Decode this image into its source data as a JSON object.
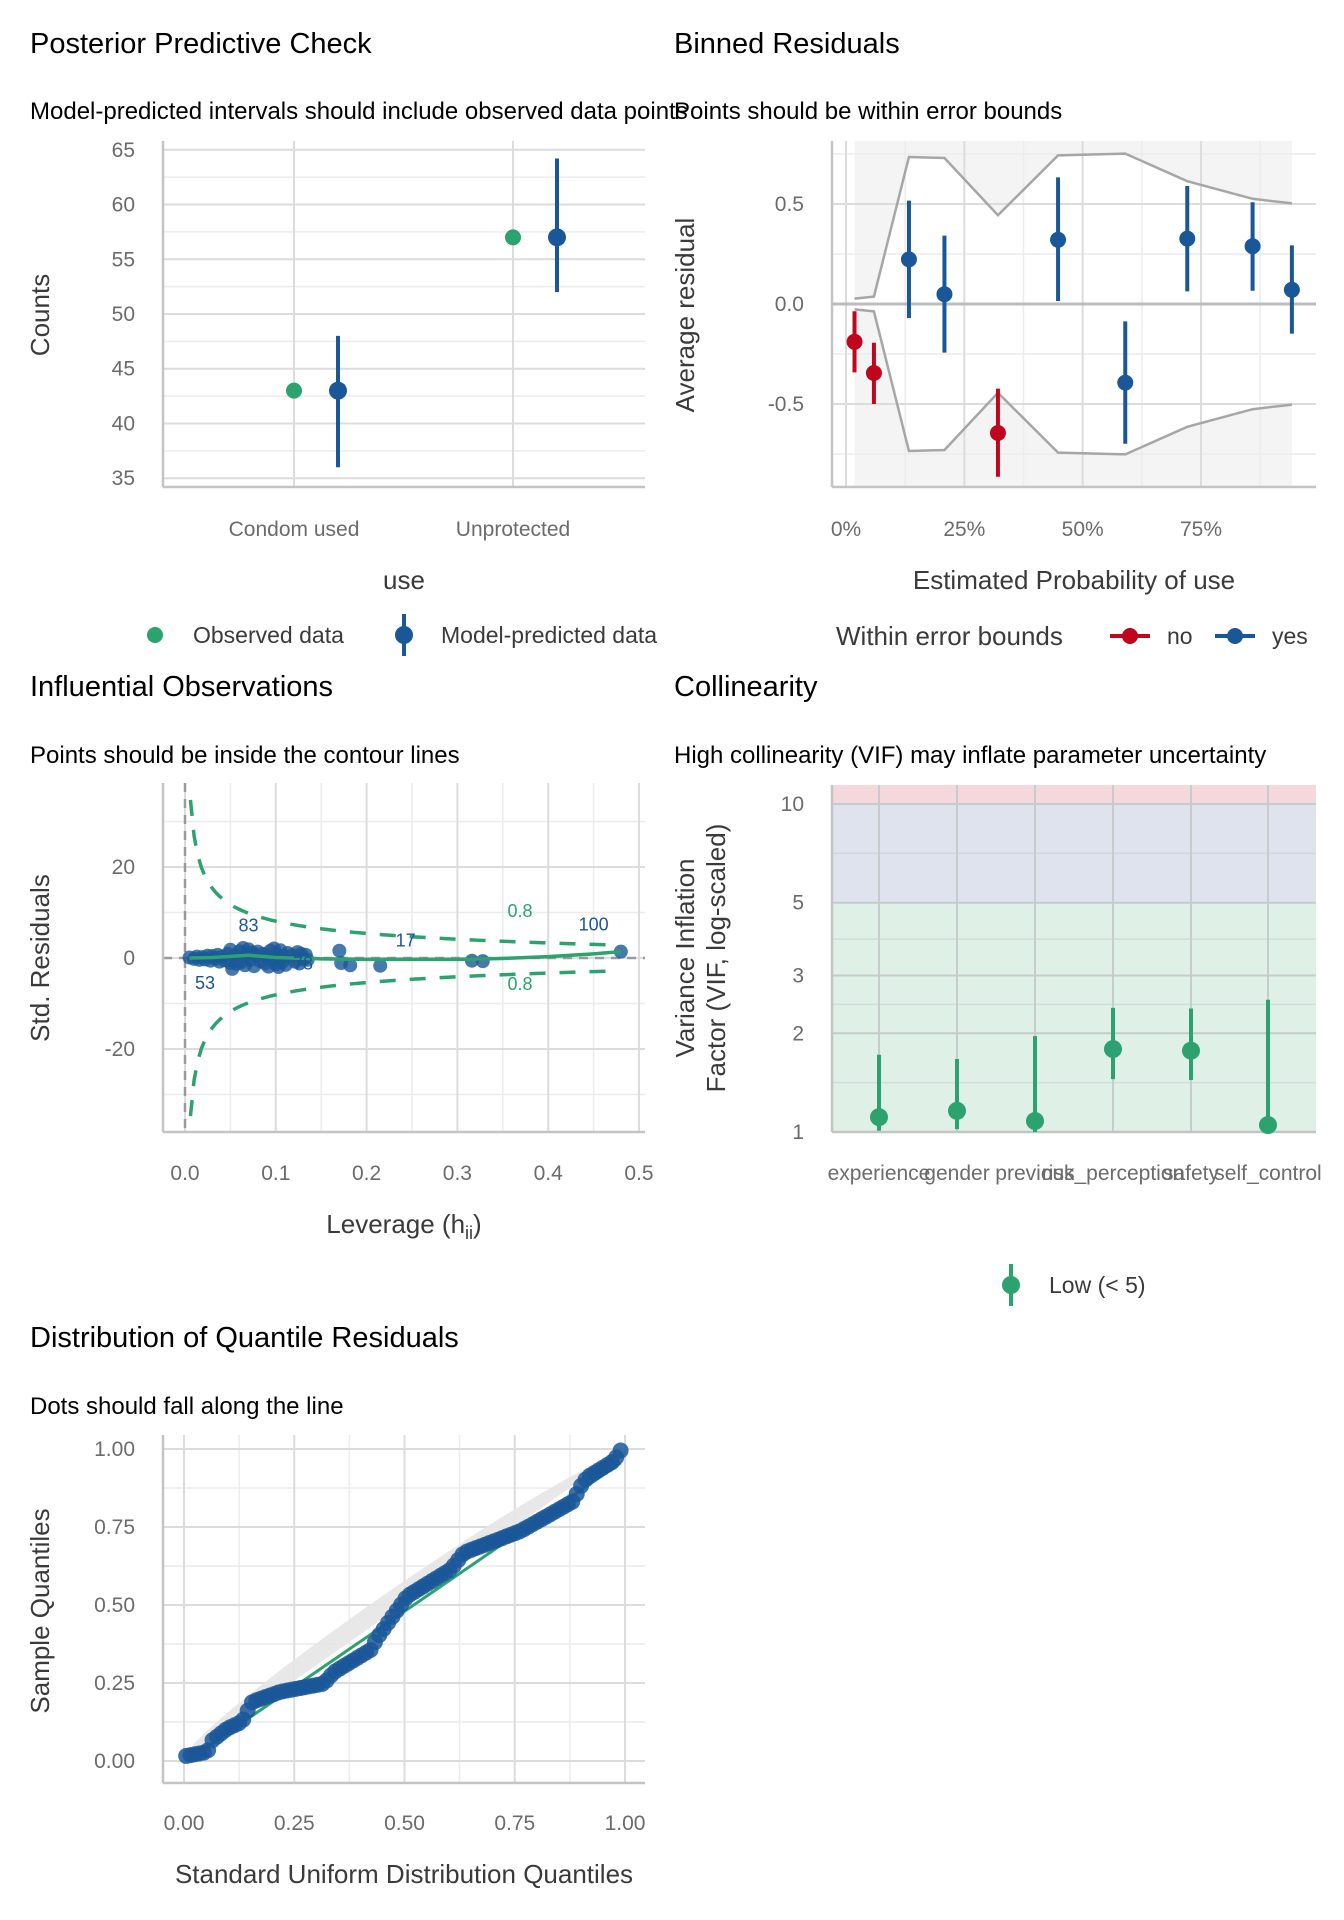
{
  "chart_data": [
    {
      "id": "ppc",
      "type": "scatter",
      "title": "Posterior Predictive Check",
      "subtitle": "Model-predicted intervals should include observed data points",
      "xlabel": "use",
      "ylabel": "Counts",
      "categories": [
        "Condom used",
        "Unprotected"
      ],
      "ylim": [
        34.2,
        65.8
      ],
      "yticks": [
        35,
        40,
        45,
        50,
        55,
        60,
        65
      ],
      "grid": true,
      "series": [
        {
          "name": "Observed data",
          "color": "#2ca26e",
          "values": [
            43,
            57
          ]
        },
        {
          "name": "Model-predicted data",
          "color": "#1a5799",
          "values": [
            43,
            57
          ],
          "lower": [
            36,
            52
          ],
          "upper": [
            48,
            64.2
          ]
        }
      ],
      "legend": {
        "position": "bottom",
        "items": [
          "Observed data",
          "Model-predicted data"
        ]
      }
    },
    {
      "id": "binned",
      "type": "scatter",
      "title": "Binned Residuals",
      "subtitle": "Points should be within error bounds",
      "xlabel": "Estimated Probability of use",
      "ylabel": "Average residual",
      "xlim": [
        -0.02,
        1.0
      ],
      "ylim": [
        -0.924,
        0.823
      ],
      "xticks": [
        "0%",
        "25%",
        "50%",
        "75%"
      ],
      "xtick_values": [
        0,
        0.25,
        0.5,
        0.75
      ],
      "yticks": [
        "-0.5",
        "0.0",
        "0.5"
      ],
      "ytick_values": [
        -0.5,
        0,
        0.5
      ],
      "grid": true,
      "points": [
        {
          "x": 0.018,
          "y": -0.189,
          "lo": -0.342,
          "hi": -0.036,
          "within": "no"
        },
        {
          "x": 0.059,
          "y": -0.345,
          "lo": -0.5,
          "hi": -0.194,
          "within": "no"
        },
        {
          "x": 0.133,
          "y": 0.223,
          "lo": -0.07,
          "hi": 0.517,
          "within": "yes"
        },
        {
          "x": 0.208,
          "y": 0.049,
          "lo": -0.243,
          "hi": 0.342,
          "within": "yes"
        },
        {
          "x": 0.321,
          "y": -0.645,
          "lo": -0.864,
          "hi": -0.423,
          "within": "no"
        },
        {
          "x": 0.448,
          "y": 0.321,
          "lo": 0.015,
          "hi": 0.633,
          "within": "yes"
        },
        {
          "x": 0.59,
          "y": -0.393,
          "lo": -0.699,
          "hi": -0.087,
          "within": "yes"
        },
        {
          "x": 0.721,
          "y": 0.327,
          "lo": 0.063,
          "hi": 0.59,
          "within": "yes"
        },
        {
          "x": 0.859,
          "y": 0.289,
          "lo": 0.066,
          "hi": 0.509,
          "within": "yes"
        },
        {
          "x": 0.942,
          "y": 0.071,
          "lo": -0.148,
          "hi": 0.293,
          "within": "yes"
        }
      ],
      "error_bounds": [
        {
          "x": 0.018,
          "bound": 0.027
        },
        {
          "x": 0.059,
          "bound": 0.037
        },
        {
          "x": 0.133,
          "bound": 0.735
        },
        {
          "x": 0.208,
          "bound": 0.73
        },
        {
          "x": 0.321,
          "bound": 0.444
        },
        {
          "x": 0.448,
          "bound": 0.743
        },
        {
          "x": 0.59,
          "bound": 0.752
        },
        {
          "x": 0.721,
          "bound": 0.614
        },
        {
          "x": 0.859,
          "bound": 0.526
        },
        {
          "x": 0.942,
          "bound": 0.503
        }
      ],
      "colors": {
        "no": "#c0061c",
        "yes": "#1a5799",
        "bound": "#a6a6a6"
      },
      "legend": {
        "position": "bottom",
        "title": "Within error bounds",
        "items": [
          "no",
          "yes"
        ]
      }
    },
    {
      "id": "influence",
      "type": "scatter",
      "title": "Influential Observations",
      "subtitle": "Points should be inside the contour lines",
      "xlabel": "Leverage (h",
      "xlabel_sub": "ii",
      "xlabel_end": ")",
      "ylabel": "Std. Residuals",
      "xlim": [
        -0.023,
        0.502
      ],
      "ylim": [
        -38.2,
        38.5
      ],
      "xticks": [
        "0.0",
        "0.1",
        "0.2",
        "0.3",
        "0.4",
        "0.5"
      ],
      "xtick_values": [
        0,
        0.1,
        0.2,
        0.3,
        0.4,
        0.5
      ],
      "yticks": [
        "-20",
        "0",
        "20"
      ],
      "ytick_values": [
        -20,
        0,
        20
      ],
      "grid": true,
      "cook_level": "0.8",
      "contour_param": 9.1,
      "points": [
        [
          0.005,
          0.1
        ],
        [
          0.01,
          -0.2
        ],
        [
          0.013,
          0.3
        ],
        [
          0.016,
          -0.4
        ],
        [
          0.019,
          0.2
        ],
        [
          0.022,
          -0.3
        ],
        [
          0.025,
          0.5
        ],
        [
          0.028,
          -0.6
        ],
        [
          0.03,
          0.4
        ],
        [
          0.033,
          -0.2
        ],
        [
          0.036,
          0.7
        ],
        [
          0.038,
          -0.8
        ],
        [
          0.041,
          0.3
        ],
        [
          0.044,
          -0.5
        ],
        [
          0.047,
          0.9
        ],
        [
          0.05,
          -1.1
        ],
        [
          0.05,
          1.8
        ],
        [
          0.052,
          -2.4
        ],
        [
          0.055,
          0.6
        ],
        [
          0.057,
          -1.3
        ],
        [
          0.06,
          1.5
        ],
        [
          0.062,
          -0.9
        ],
        [
          0.064,
          2.2
        ],
        [
          0.066,
          -1.6
        ],
        [
          0.068,
          0.8
        ],
        [
          0.07,
          1.9
        ],
        [
          0.072,
          -0.4
        ],
        [
          0.074,
          1.2
        ],
        [
          0.076,
          -1.8
        ],
        [
          0.078,
          0.5
        ],
        [
          0.08,
          1.4
        ],
        [
          0.083,
          -0.7
        ],
        [
          0.086,
          0.9
        ],
        [
          0.088,
          -1.2
        ],
        [
          0.09,
          0.3
        ],
        [
          0.092,
          -1.9
        ],
        [
          0.094,
          1.6
        ],
        [
          0.096,
          -0.5
        ],
        [
          0.098,
          2.1
        ],
        [
          0.1,
          -1.4
        ],
        [
          0.101,
          0.8
        ],
        [
          0.103,
          -2.0
        ],
        [
          0.105,
          1.7
        ],
        [
          0.107,
          -0.9
        ],
        [
          0.109,
          0.4
        ],
        [
          0.111,
          -1.5
        ],
        [
          0.113,
          1.1
        ],
        [
          0.118,
          0.6
        ],
        [
          0.121,
          -0.8
        ],
        [
          0.124,
          1.3
        ],
        [
          0.126,
          -1.2
        ],
        [
          0.128,
          0.9
        ],
        [
          0.13,
          -0.3
        ],
        [
          0.133,
          0.7
        ],
        [
          0.135,
          -0.4
        ],
        [
          0.17,
          1.6
        ],
        [
          0.172,
          -1.1
        ],
        [
          0.182,
          -1.6
        ],
        [
          0.215,
          -1.7
        ],
        [
          0.316,
          -0.6
        ],
        [
          0.328,
          -0.7
        ],
        [
          0.48,
          1.4
        ]
      ],
      "labels": [
        {
          "text": "83",
          "x": 0.07,
          "y": 5.8
        },
        {
          "text": "53",
          "x": 0.022,
          "y": -6.8
        },
        {
          "text": "78",
          "x": 0.13,
          "y": -2.5
        },
        {
          "text": "17",
          "x": 0.243,
          "y": 2.5
        },
        {
          "text": "100",
          "x": 0.45,
          "y": 6.0
        },
        {
          "text": "0.8",
          "x": 0.369,
          "y": 9.0,
          "kind": "contour"
        },
        {
          "text": "0.8",
          "x": 0.369,
          "y": -7.0,
          "kind": "contour"
        }
      ],
      "loess": [
        [
          0.005,
          0
        ],
        [
          0.03,
          0.1
        ],
        [
          0.07,
          0.6
        ],
        [
          0.1,
          0.1
        ],
        [
          0.15,
          -0.2
        ],
        [
          0.2,
          -0.3
        ],
        [
          0.3,
          -0.3
        ],
        [
          0.35,
          -0.1
        ],
        [
          0.4,
          0.3
        ],
        [
          0.45,
          0.9
        ],
        [
          0.48,
          1.4
        ]
      ],
      "colors": {
        "points": "#1a5799",
        "contour": "#2ca26e",
        "loess": "#2ca26e",
        "labels": "#1a5799"
      }
    },
    {
      "id": "collinearity",
      "type": "scatter",
      "title": "Collinearity",
      "subtitle": "High collinearity (VIF) may inflate parameter uncertainty",
      "ylabel": "Variance Inflation",
      "ylabel2": "Factor (VIF, log-scaled)",
      "yscale": "log",
      "ylim": [
        1,
        11.6
      ],
      "yticks": [
        "1",
        "2",
        "3",
        "5",
        "10"
      ],
      "ytick_values": [
        1,
        2,
        3,
        5,
        10
      ],
      "categories": [
        "experience",
        "gender",
        "previous",
        "risk_perception",
        "safety",
        "self_control"
      ],
      "values": [
        1.11,
        1.16,
        1.08,
        1.79,
        1.77,
        1.05
      ],
      "lower": [
        1.01,
        1.02,
        1.0,
        1.45,
        1.44,
        1.0
      ],
      "upper": [
        1.72,
        1.67,
        1.96,
        2.39,
        2.38,
        2.53
      ],
      "bands": [
        {
          "name": "low",
          "from": 1,
          "to": 5,
          "color": "#dff0e6"
        },
        {
          "name": "moderate",
          "from": 5,
          "to": 10,
          "color": "#dee3ee"
        },
        {
          "name": "high",
          "from": 10,
          "to": 11.6,
          "color": "#f5d8dc"
        }
      ],
      "point_color": "#2ca26e",
      "legend": {
        "position": "bottom",
        "items": [
          "Low (< 5)"
        ]
      }
    },
    {
      "id": "qq",
      "type": "scatter",
      "title": "Distribution of Quantile Residuals",
      "subtitle": "Dots should fall along the line",
      "xlabel": "Standard Uniform Distribution Quantiles",
      "ylabel": "Sample Quantiles",
      "xlim": [
        -0.05,
        1.05
      ],
      "ylim": [
        -0.07,
        1.04
      ],
      "xticks": [
        "0.00",
        "0.25",
        "0.50",
        "0.75",
        "1.00"
      ],
      "xtick_values": [
        0,
        0.25,
        0.5,
        0.75,
        1
      ],
      "yticks": [
        "0.00",
        "0.25",
        "0.50",
        "0.75",
        "1.00"
      ],
      "ytick_values": [
        0,
        0.25,
        0.5,
        0.75,
        1
      ],
      "n_points": 100,
      "curve_anchors": [
        [
          0.0,
          0.015
        ],
        [
          0.053,
          0.029
        ],
        [
          0.064,
          0.066
        ],
        [
          0.098,
          0.104
        ],
        [
          0.132,
          0.126
        ],
        [
          0.143,
          0.158
        ],
        [
          0.155,
          0.19
        ],
        [
          0.219,
          0.222
        ],
        [
          0.317,
          0.248
        ],
        [
          0.34,
          0.285
        ],
        [
          0.423,
          0.356
        ],
        [
          0.438,
          0.394
        ],
        [
          0.484,
          0.485
        ],
        [
          0.506,
          0.528
        ],
        [
          0.605,
          0.614
        ],
        [
          0.635,
          0.668
        ],
        [
          0.695,
          0.7
        ],
        [
          0.763,
          0.737
        ],
        [
          0.831,
          0.791
        ],
        [
          0.884,
          0.834
        ],
        [
          0.895,
          0.871
        ],
        [
          0.914,
          0.909
        ],
        [
          0.975,
          0.962
        ],
        [
          0.99,
          0.995
        ]
      ],
      "reference_line": [
        [
          0.005,
          0.0
        ],
        [
          0.99,
          0.955
        ]
      ],
      "colors": {
        "points": "#1a5799",
        "line": "#2ca26e",
        "band": "#e6e6e6"
      }
    }
  ]
}
